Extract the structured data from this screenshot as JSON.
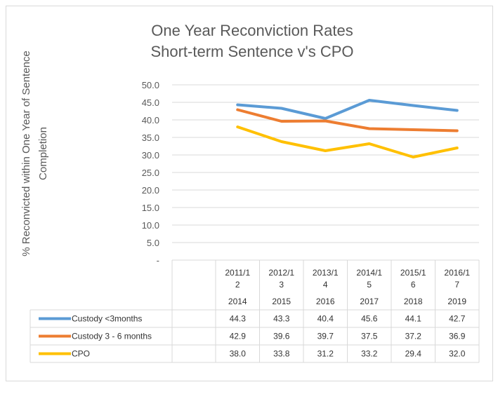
{
  "chart_data": {
    "type": "line",
    "title": [
      "One Year Reconviction Rates",
      "Short-term Sentence v's CPO"
    ],
    "ylabel": [
      "% Reconvicted within One Year of Sentence",
      "Completion"
    ],
    "ylim": [
      0,
      50
    ],
    "yticks": [
      "50.0",
      "45.0",
      "40.0",
      "35.0",
      "30.0",
      "25.0",
      "20.0",
      "15.0",
      "10.0",
      "5.0",
      "-"
    ],
    "grid": true,
    "legend": "table-below",
    "categories": [
      {
        "period": [
          "2011/1",
          "2"
        ],
        "year": "2014"
      },
      {
        "period": [
          "2012/1",
          "3"
        ],
        "year": "2015"
      },
      {
        "period": [
          "2013/1",
          "4"
        ],
        "year": "2016"
      },
      {
        "period": [
          "2014/1",
          "5"
        ],
        "year": "2017"
      },
      {
        "period": [
          "2015/1",
          "6"
        ],
        "year": "2018"
      },
      {
        "period": [
          "2016/1",
          "7"
        ],
        "year": "2019"
      }
    ],
    "series": [
      {
        "name": "Custody <3months",
        "color": "#5b9bd5",
        "values": [
          44.3,
          43.3,
          40.4,
          45.6,
          44.1,
          42.7
        ],
        "labels": [
          "44.3",
          "43.3",
          "40.4",
          "45.6",
          "44.1",
          "42.7"
        ]
      },
      {
        "name": "Custody 3 - 6 months",
        "color": "#ed7d31",
        "values": [
          42.9,
          39.6,
          39.7,
          37.5,
          37.2,
          36.9
        ],
        "labels": [
          "42.9",
          "39.6",
          "39.7",
          "37.5",
          "37.2",
          "36.9"
        ]
      },
      {
        "name": "CPO",
        "color": "#ffc000",
        "values": [
          38.0,
          33.8,
          31.2,
          33.2,
          29.4,
          32.0
        ],
        "labels": [
          "38.0",
          "33.8",
          "31.2",
          "33.2",
          "29.4",
          "32.0"
        ]
      }
    ]
  }
}
